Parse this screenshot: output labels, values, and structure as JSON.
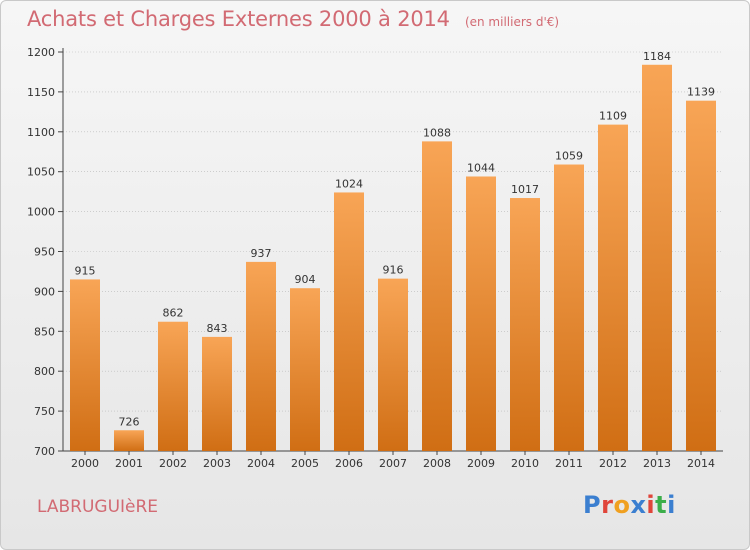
{
  "header": {
    "title": "Achats et Charges Externes 2000 à 2014",
    "subtitle": "(en milliers d'€)"
  },
  "footer": {
    "town": "LABRUGUIèRE",
    "logo_text": "Proxiti",
    "logo_colors": [
      "#3b7fd0",
      "#e0453a",
      "#f0a020",
      "#3b7fd0",
      "#e0453a",
      "#3cae4a",
      "#3b7fd0"
    ]
  },
  "colors": {
    "bar_top": "#f8a556",
    "bar_bottom": "#d06e14",
    "title": "#d26a73",
    "grid": "#b8b8b8"
  },
  "chart_data": {
    "type": "bar",
    "title": "Achats et Charges Externes 2000 à 2014",
    "subtitle": "(en milliers d'€)",
    "categories": [
      "2000",
      "2001",
      "2002",
      "2003",
      "2004",
      "2005",
      "2006",
      "2007",
      "2008",
      "2009",
      "2010",
      "2011",
      "2012",
      "2013",
      "2014"
    ],
    "values": [
      915,
      726,
      862,
      843,
      937,
      904,
      1024,
      916,
      1088,
      1044,
      1017,
      1059,
      1109,
      1184,
      1139
    ],
    "ylim": [
      700,
      1200
    ],
    "yticks": [
      700,
      750,
      800,
      850,
      900,
      950,
      1000,
      1050,
      1100,
      1150,
      1200
    ],
    "grid": true,
    "legend": "none"
  }
}
